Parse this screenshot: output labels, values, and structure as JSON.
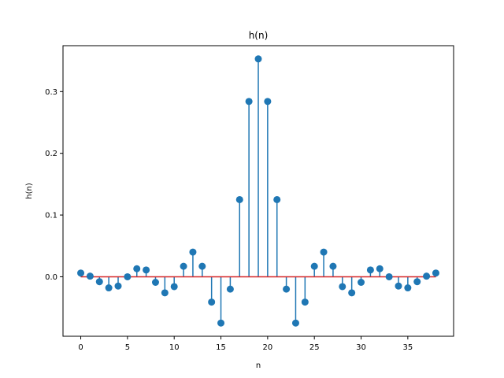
{
  "chart_data": {
    "type": "stem",
    "title": "h(n)",
    "xlabel": "n",
    "ylabel": "h(n)",
    "x": [
      0,
      1,
      2,
      3,
      4,
      5,
      6,
      7,
      8,
      9,
      10,
      11,
      12,
      13,
      14,
      15,
      16,
      17,
      18,
      19,
      20,
      21,
      22,
      23,
      24,
      25,
      26,
      27,
      28,
      29,
      30,
      31,
      32,
      33,
      34,
      35,
      36,
      37,
      38
    ],
    "series": [
      {
        "values": [
          0.006,
          0.001,
          -0.008,
          -0.018,
          -0.015,
          0.0,
          0.013,
          0.011,
          -0.009,
          -0.026,
          -0.016,
          0.017,
          0.04,
          0.017,
          -0.041,
          -0.075,
          -0.02,
          0.125,
          0.284,
          0.353,
          0.284,
          0.125,
          -0.02,
          -0.075,
          -0.041,
          0.017,
          0.04,
          0.017,
          -0.016,
          -0.026,
          -0.009,
          0.011,
          0.013,
          0.0,
          -0.015,
          -0.018,
          -0.008,
          0.001,
          0.006
        ]
      }
    ],
    "xlim": [
      -1.9,
      39.9
    ],
    "ylim": [
      -0.0964,
      0.3744
    ],
    "xticks": [
      0,
      5,
      10,
      15,
      20,
      25,
      30,
      35
    ],
    "yticks": [
      0.0,
      0.1,
      0.2,
      0.3
    ],
    "ytick_labels": [
      "0.0",
      "0.1",
      "0.2",
      "0.3"
    ],
    "grid": false,
    "baseline": 0,
    "colors": {
      "stem": "#1f77b4",
      "marker": "#1f77b4",
      "baseline": "#d62728",
      "axes": "#000000"
    }
  }
}
